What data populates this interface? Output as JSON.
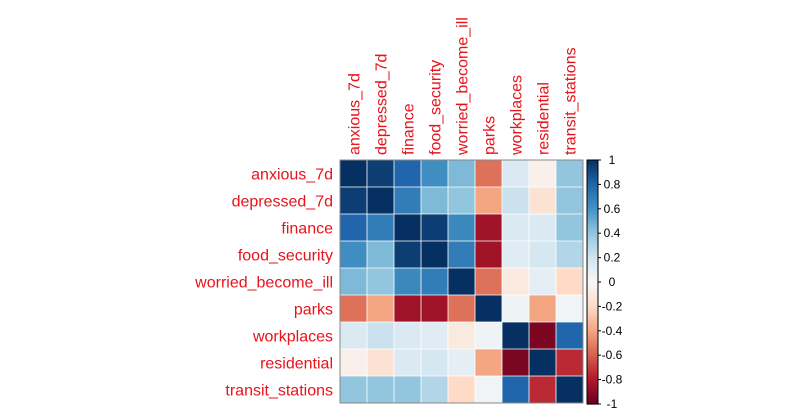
{
  "chart_data": {
    "type": "heatmap",
    "title": "",
    "variables": [
      "anxious_7d",
      "depressed_7d",
      "finance",
      "food_security",
      "worried_become_ill",
      "parks",
      "workplaces",
      "residential",
      "transit_stations"
    ],
    "matrix": [
      [
        1.0,
        0.95,
        0.8,
        0.62,
        0.45,
        -0.55,
        0.15,
        -0.05,
        0.4
      ],
      [
        0.95,
        1.0,
        0.7,
        0.45,
        0.4,
        -0.4,
        0.22,
        -0.15,
        0.4
      ],
      [
        0.8,
        0.7,
        1.0,
        0.95,
        0.65,
        -0.85,
        0.15,
        0.15,
        0.4
      ],
      [
        0.62,
        0.45,
        0.95,
        1.0,
        0.7,
        -0.85,
        0.12,
        0.18,
        0.3
      ],
      [
        0.45,
        0.4,
        0.65,
        0.7,
        1.0,
        -0.55,
        -0.1,
        0.1,
        -0.2
      ],
      [
        -0.55,
        -0.4,
        -0.85,
        -0.85,
        -0.55,
        1.0,
        0.05,
        -0.4,
        0.03
      ],
      [
        0.15,
        0.22,
        0.15,
        0.12,
        -0.1,
        0.05,
        1.0,
        -0.95,
        0.8
      ],
      [
        -0.05,
        -0.15,
        0.15,
        0.18,
        0.1,
        -0.4,
        -0.95,
        1.0,
        -0.75
      ],
      [
        0.4,
        0.4,
        0.4,
        0.3,
        -0.2,
        0.03,
        0.8,
        -0.75,
        1.0
      ]
    ],
    "colorbar": {
      "range": [
        -1,
        1
      ],
      "ticks": [
        "1",
        "0.8",
        "0.6",
        "0.4",
        "0.2",
        "0",
        "-0.2",
        "-0.4",
        "-0.6",
        "-0.8",
        "-1"
      ],
      "colors": [
        "#67001f",
        "#b2182b",
        "#d6604d",
        "#f4a582",
        "#fddbc7",
        "#f7f7f7",
        "#d1e5f0",
        "#92c5de",
        "#4393c3",
        "#2166ac",
        "#053061"
      ]
    },
    "label_color": "#e8131b"
  }
}
